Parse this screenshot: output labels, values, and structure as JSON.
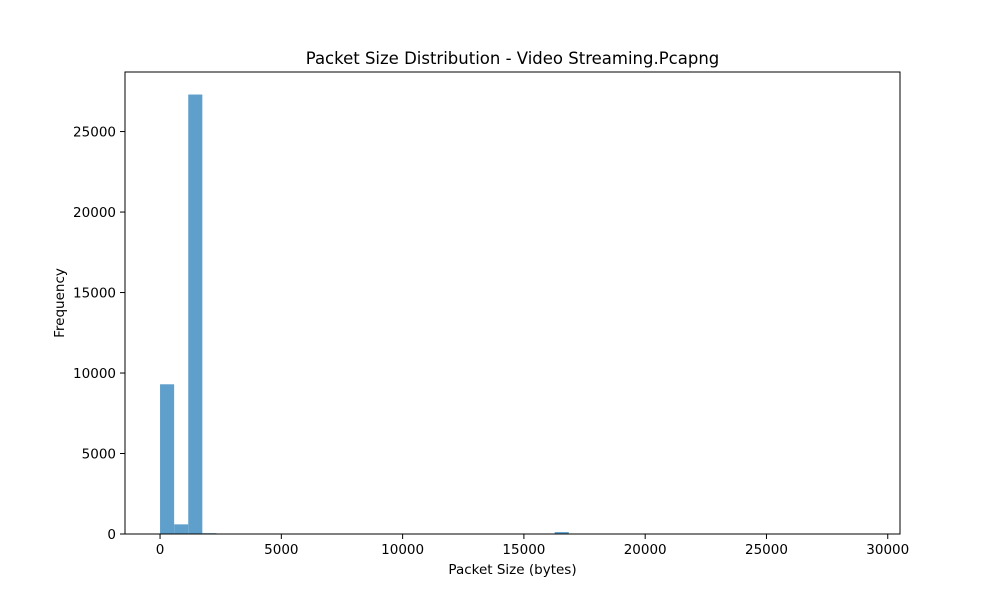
{
  "chart_data": {
    "type": "bar",
    "title": "Packet Size Distribution - Video Streaming.Pcapng",
    "xlabel": "Packet Size (bytes)",
    "ylabel": "Frequency",
    "xlim": [
      -1445,
      30505
    ],
    "ylim": [
      0,
      28700
    ],
    "x_ticks": [
      0,
      5000,
      10000,
      15000,
      20000,
      25000,
      30000
    ],
    "y_ticks": [
      0,
      5000,
      10000,
      15000,
      20000,
      25000
    ],
    "bin_width": 581,
    "grid": false,
    "legend": "none",
    "bar_color": "#5f9fcc",
    "series": [
      {
        "bins": [
          {
            "x0": 0,
            "x1": 581,
            "value": 9300
          },
          {
            "x0": 581,
            "x1": 1162,
            "value": 600
          },
          {
            "x0": 1162,
            "x1": 1743,
            "value": 27300
          },
          {
            "x0": 1743,
            "x1": 2324,
            "value": 50
          },
          {
            "x0": 2324,
            "x1": 2905,
            "value": 10
          },
          {
            "x0": 16268,
            "x1": 16849,
            "value": 120
          }
        ]
      }
    ]
  }
}
